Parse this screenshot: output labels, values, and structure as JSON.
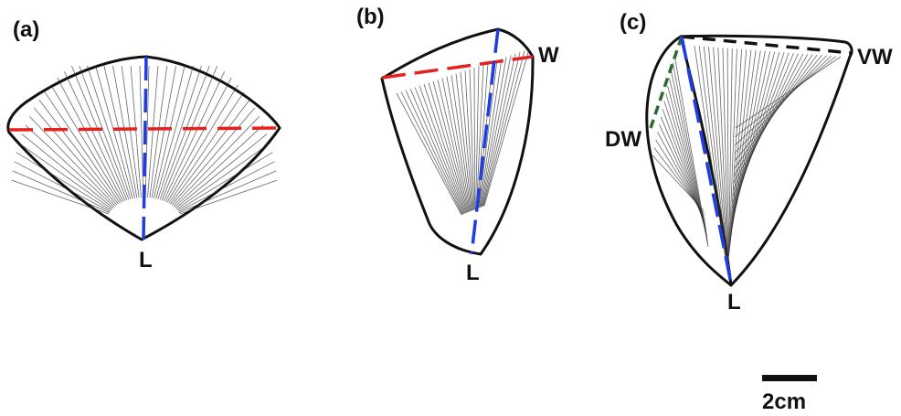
{
  "panels": [
    {
      "id": "a",
      "label": "(a)",
      "measures": [
        {
          "label": "L",
          "color": "#1f3de0"
        },
        {
          "label": "",
          "color": "#e5211f"
        }
      ]
    },
    {
      "id": "b",
      "label": "(b)",
      "measures": [
        {
          "label": "L",
          "color": "#1f3de0"
        },
        {
          "label": "W",
          "color": "#e5211f"
        }
      ]
    },
    {
      "id": "c",
      "label": "(c)",
      "measures": [
        {
          "label": "L",
          "color": "#1f3de0"
        },
        {
          "label": "VW",
          "color": "#111111"
        },
        {
          "label": "DW",
          "color": "#2e6b34"
        }
      ]
    }
  ],
  "scale_bar": {
    "label": "2cm"
  },
  "icons": {
    "shell": "bivalve-shell-drawing"
  }
}
